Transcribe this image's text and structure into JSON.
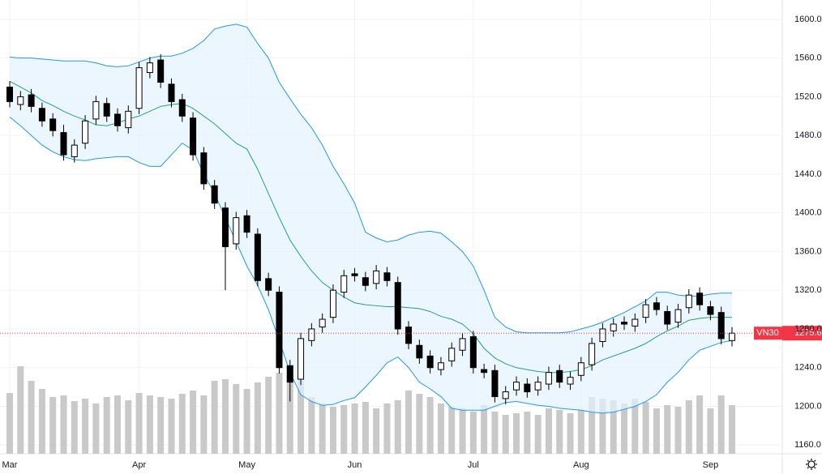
{
  "chart_data": {
    "type": "candlestick",
    "symbol": "VN30",
    "categories": [
      "Mar",
      null,
      null,
      null,
      null,
      null,
      null,
      null,
      null,
      null,
      null,
      null,
      "Apr",
      null,
      null,
      null,
      null,
      null,
      null,
      null,
      null,
      null,
      "May",
      null,
      null,
      null,
      null,
      null,
      null,
      null,
      null,
      null,
      "Jun",
      null,
      null,
      null,
      null,
      null,
      null,
      null,
      null,
      null,
      null,
      "Jul",
      null,
      null,
      null,
      null,
      null,
      null,
      null,
      null,
      null,
      "Aug",
      null,
      null,
      null,
      null,
      null,
      null,
      null,
      null,
      null,
      null,
      null,
      "Sep",
      null,
      null
    ],
    "open": [
      1530,
      1512,
      1522,
      1508,
      1497,
      1483,
      1458,
      1472,
      1497,
      1513,
      1502,
      1488,
      1508,
      1545,
      1558,
      1533,
      1517,
      1498,
      1462,
      1428,
      1405,
      1368,
      1397,
      1378,
      1332,
      1318,
      1242,
      1228,
      1268,
      1282,
      1292,
      1318,
      1337,
      1333,
      1327,
      1338,
      1328,
      1282,
      1263,
      1252,
      1238,
      1247,
      1258,
      1272,
      1238,
      1237,
      1208,
      1217,
      1223,
      1217,
      1223,
      1237,
      1223,
      1232,
      1243,
      1267,
      1278,
      1287,
      1283,
      1292,
      1307,
      1298,
      1287,
      1302,
      1317,
      1303,
      1297,
      1268
    ],
    "high": [
      1536,
      1526,
      1528,
      1514,
      1503,
      1491,
      1476,
      1501,
      1521,
      1519,
      1508,
      1511,
      1556,
      1561,
      1564,
      1539,
      1523,
      1504,
      1468,
      1434,
      1411,
      1401,
      1403,
      1384,
      1338,
      1324,
      1248,
      1276,
      1286,
      1296,
      1326,
      1341,
      1343,
      1339,
      1346,
      1344,
      1334,
      1288,
      1269,
      1258,
      1251,
      1266,
      1276,
      1278,
      1244,
      1243,
      1221,
      1231,
      1229,
      1231,
      1241,
      1243,
      1236,
      1251,
      1271,
      1286,
      1291,
      1293,
      1296,
      1311,
      1313,
      1304,
      1306,
      1321,
      1323,
      1309,
      1303,
      1282
    ],
    "low": [
      1509,
      1506,
      1504,
      1489,
      1479,
      1454,
      1452,
      1466,
      1491,
      1494,
      1484,
      1482,
      1502,
      1539,
      1529,
      1509,
      1494,
      1454,
      1424,
      1404,
      1320,
      1362,
      1374,
      1324,
      1314,
      1234,
      1205,
      1222,
      1262,
      1276,
      1286,
      1312,
      1329,
      1319,
      1321,
      1324,
      1274,
      1259,
      1244,
      1234,
      1232,
      1241,
      1252,
      1234,
      1229,
      1204,
      1202,
      1211,
      1209,
      1211,
      1217,
      1219,
      1217,
      1226,
      1237,
      1261,
      1272,
      1279,
      1277,
      1286,
      1294,
      1279,
      1281,
      1296,
      1299,
      1289,
      1264,
      1262
    ],
    "close": [
      1515,
      1520,
      1510,
      1495,
      1485,
      1460,
      1470,
      1495,
      1515,
      1500,
      1490,
      1505,
      1550,
      1555,
      1535,
      1515,
      1500,
      1460,
      1430,
      1410,
      1365,
      1395,
      1380,
      1330,
      1320,
      1240,
      1225,
      1270,
      1280,
      1290,
      1320,
      1335,
      1335,
      1325,
      1340,
      1330,
      1280,
      1265,
      1250,
      1240,
      1245,
      1260,
      1270,
      1240,
      1235,
      1210,
      1215,
      1225,
      1215,
      1225,
      1235,
      1225,
      1230,
      1245,
      1265,
      1280,
      1285,
      1285,
      1290,
      1305,
      1300,
      1285,
      1300,
      1315,
      1305,
      1295,
      1270,
      1275.6
    ],
    "volume": [
      75,
      108,
      90,
      80,
      70,
      72,
      65,
      68,
      62,
      70,
      72,
      66,
      75,
      72,
      70,
      68,
      74,
      78,
      72,
      90,
      92,
      86,
      80,
      88,
      95,
      100,
      110,
      90,
      70,
      62,
      58,
      60,
      62,
      64,
      56,
      62,
      66,
      78,
      74,
      70,
      62,
      58,
      56,
      52,
      60,
      52,
      48,
      50,
      52,
      48,
      56,
      54,
      50,
      54,
      70,
      68,
      66,
      62,
      68,
      64,
      56,
      60,
      58,
      66,
      72,
      56,
      72,
      60
    ],
    "bands": {
      "upper": [
        1561,
        1560,
        1560,
        1559,
        1558,
        1557,
        1557,
        1557,
        1555,
        1552,
        1551,
        1552,
        1556,
        1560,
        1562,
        1562,
        1565,
        1570,
        1578,
        1590,
        1593,
        1595,
        1592,
        1575,
        1560,
        1535,
        1518,
        1502,
        1488,
        1470,
        1448,
        1430,
        1410,
        1380,
        1374,
        1370,
        1372,
        1377,
        1380,
        1381,
        1379,
        1370,
        1360,
        1345,
        1320,
        1292,
        1282,
        1277,
        1276,
        1276,
        1276,
        1276,
        1277,
        1280,
        1283,
        1287,
        1292,
        1297,
        1303,
        1309,
        1318,
        1318,
        1315,
        1314,
        1314,
        1316,
        1317,
        1317
      ],
      "middle": [
        1536,
        1530,
        1524,
        1516,
        1511,
        1505,
        1500,
        1496,
        1491,
        1490,
        1493,
        1497,
        1500,
        1505,
        1510,
        1512,
        1513,
        1508,
        1500,
        1492,
        1482,
        1472,
        1466,
        1445,
        1420,
        1395,
        1372,
        1355,
        1340,
        1328,
        1320,
        1313,
        1307,
        1305,
        1304,
        1303,
        1303,
        1302,
        1301,
        1298,
        1293,
        1290,
        1285,
        1275,
        1260,
        1250,
        1244,
        1240,
        1238,
        1236,
        1235,
        1235,
        1236,
        1238,
        1242,
        1248,
        1252,
        1256,
        1260,
        1265,
        1272,
        1278,
        1283,
        1289,
        1291,
        1292,
        1292,
        1292
      ],
      "lower": [
        1499,
        1490,
        1480,
        1470,
        1463,
        1458,
        1455,
        1454,
        1456,
        1457,
        1458,
        1458,
        1452,
        1448,
        1448,
        1460,
        1472,
        1465,
        1440,
        1420,
        1395,
        1370,
        1345,
        1325,
        1300,
        1268,
        1235,
        1212,
        1205,
        1201,
        1202,
        1206,
        1209,
        1220,
        1232,
        1245,
        1251,
        1240,
        1225,
        1218,
        1210,
        1198,
        1196,
        1196,
        1196,
        1200,
        1204,
        1205,
        1203,
        1201,
        1200,
        1198,
        1197,
        1196,
        1194,
        1193,
        1194,
        1197,
        1200,
        1205,
        1212,
        1225,
        1235,
        1248,
        1258,
        1262,
        1266,
        1268
      ],
      "band_color": "#2196f3",
      "middle_color": "#26a17b",
      "fill": "#e3f2fd"
    },
    "up_color": "#ffffff",
    "down_color": "#000000",
    "volume_color": "#c9c9c9",
    "last_color": "#f23645",
    "ylim": [
      1151,
      1620
    ],
    "yticks": [
      {
        "value": 1160,
        "label": "1160.0"
      },
      {
        "value": 1200,
        "label": "1200.0"
      },
      {
        "value": 1240,
        "label": "1240.0"
      },
      {
        "value": 1280,
        "label": "1280.0"
      },
      {
        "value": 1320,
        "label": "1320.0"
      },
      {
        "value": 1360,
        "label": "1360.0"
      },
      {
        "value": 1400,
        "label": "1400.0"
      },
      {
        "value": 1440,
        "label": "1440.0"
      },
      {
        "value": 1480,
        "label": "1480.0"
      },
      {
        "value": 1520,
        "label": "1520.0"
      },
      {
        "value": 1560,
        "label": "1560.0"
      },
      {
        "value": 1600,
        "label": "1600.0"
      }
    ],
    "grid": true
  }
}
